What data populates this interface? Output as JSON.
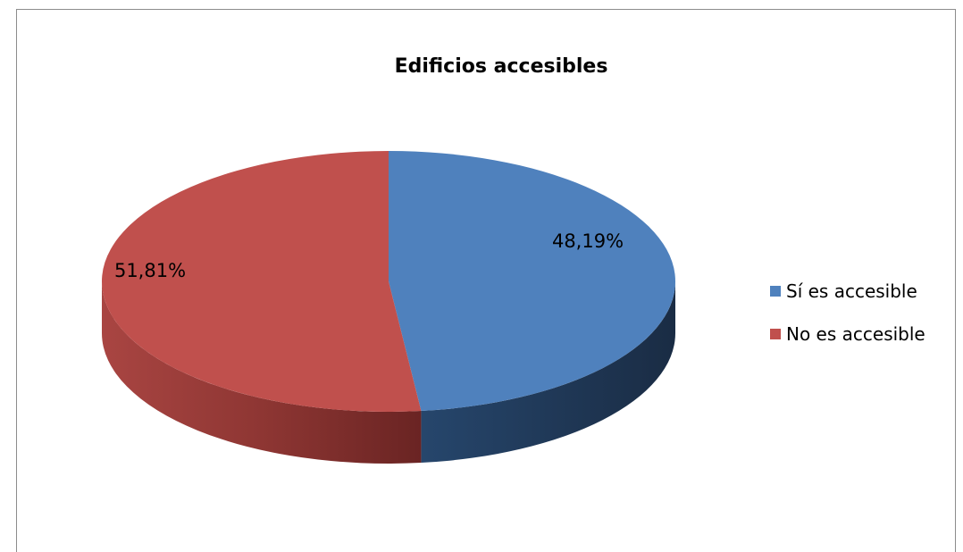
{
  "chart_data": {
    "type": "pie",
    "title": "Edificios accesibles",
    "labels": [
      "Sí es accesible",
      "No es accesible"
    ],
    "values": [
      48.19,
      51.81
    ],
    "data_labels": [
      "48,19%",
      "51,81%"
    ],
    "colors": [
      "#4f81bd",
      "#c0504d"
    ],
    "side_colors": [
      "#1f344f",
      "#7a2a28"
    ],
    "legend_position": "right",
    "style": "3d"
  }
}
